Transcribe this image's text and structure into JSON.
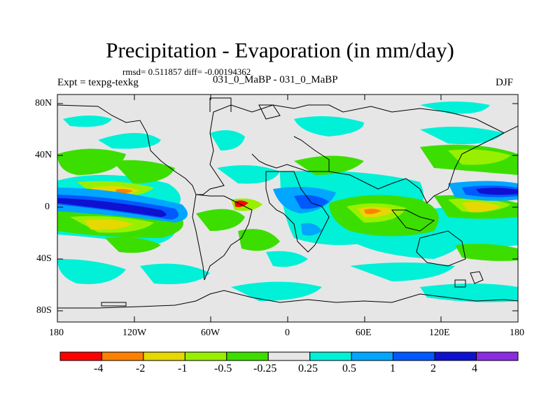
{
  "title": "Precipitation - Evaporation (in mm/day)",
  "stats": "rmsd= 0.511857 diff= -0.00194362",
  "experiment": "Expt = texpg-texkg",
  "runs": "031_0_MaBP - 031_0_MaBP",
  "season": "DJF",
  "lat_labels": [
    "80N",
    "40N",
    "0",
    "40S",
    "80S"
  ],
  "lon_labels": [
    "180",
    "120W",
    "60W",
    "0",
    "60E",
    "120E",
    "180"
  ],
  "colorbar": {
    "colors": [
      "#ff0000",
      "#ff8000",
      "#e6d800",
      "#98f000",
      "#3cde00",
      "#e6e6e6",
      "#00f0d8",
      "#00a6ff",
      "#0058ff",
      "#1010d0",
      "#8a2be2"
    ],
    "labels": [
      "-4",
      "-2",
      "-1",
      "-0.5",
      "-0.25",
      "0.25",
      "0.5",
      "1",
      "2",
      "4"
    ]
  },
  "colors": {
    "background": "#e6e6e6",
    "coastline": "#000000"
  }
}
